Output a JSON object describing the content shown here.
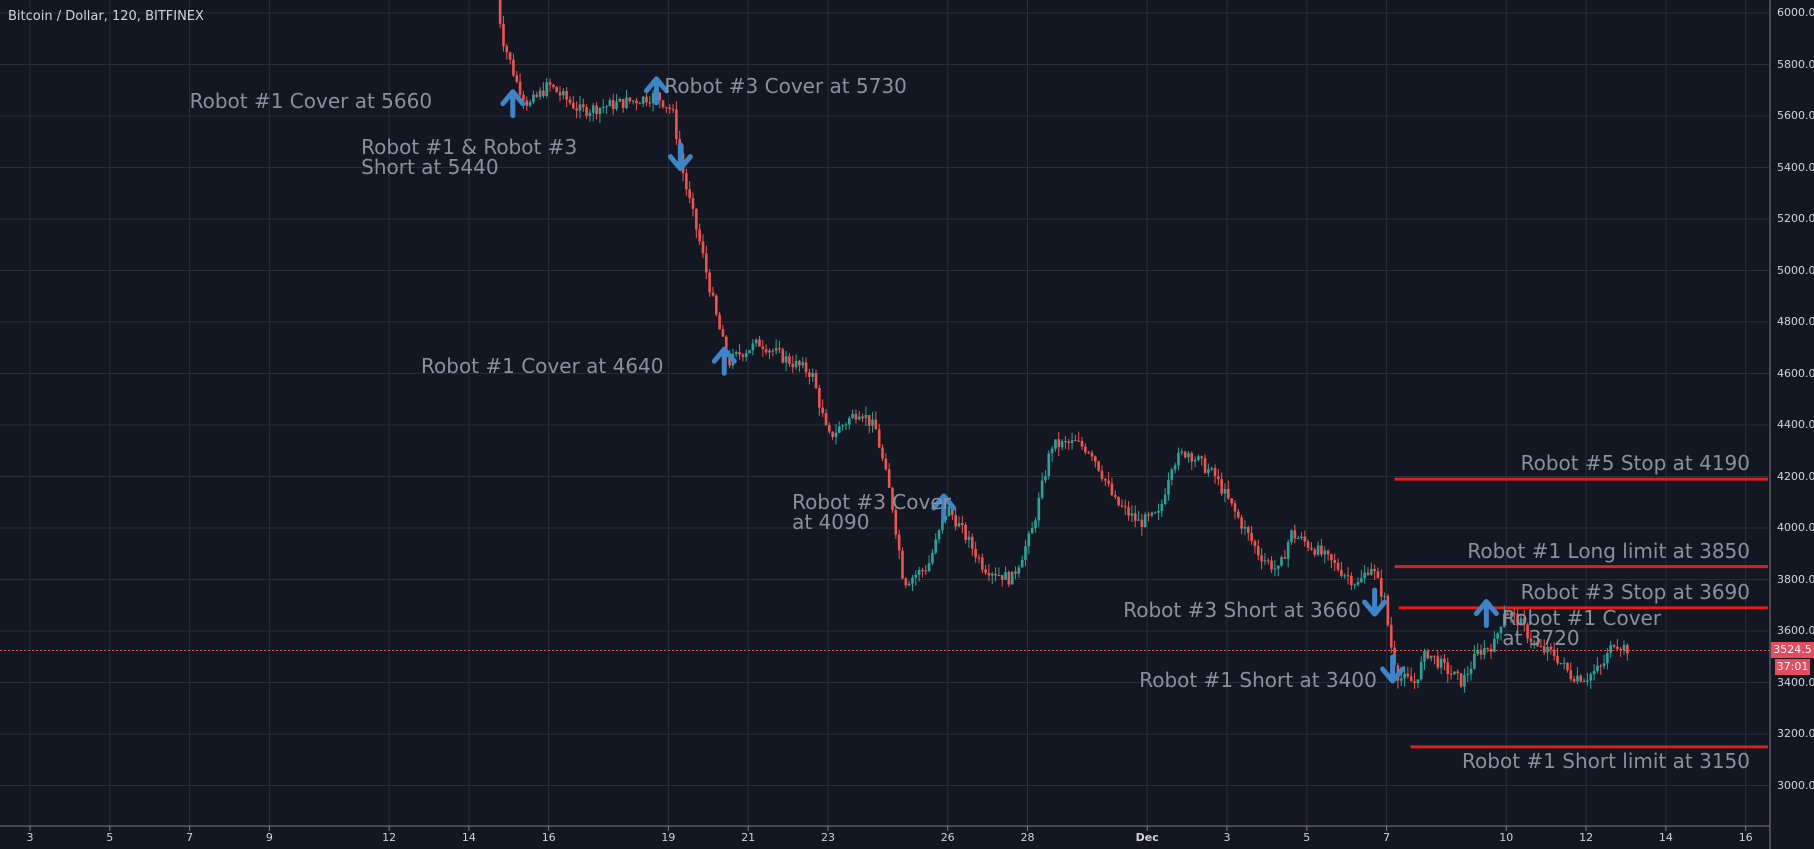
{
  "header": {
    "symbol": "Bitcoin / Dollar, 120, BITFINEX"
  },
  "colors": {
    "background": "#131722",
    "grid": "#2a2e39",
    "up": "#26a69a",
    "down": "#ef5350",
    "arrow": "#3d85c6",
    "level": "#e31d1d",
    "text": "#8a919e"
  },
  "chart_data": {
    "type": "candlestick",
    "title": "Bitcoin / Dollar, 120, BITFINEX",
    "y_ticks": [
      "6000.0",
      "5800.0",
      "5600.0",
      "5400.0",
      "5200.0",
      "5000.0",
      "4800.0",
      "4600.0",
      "4400.0",
      "4200.0",
      "4000.0",
      "3800.0",
      "3600.0",
      "3400.0",
      "3200.0",
      "3000.0"
    ],
    "ylim": [
      2870,
      6060
    ],
    "x_ticks": [
      "3",
      "5",
      "7",
      "9",
      "12",
      "14",
      "16",
      "19",
      "21",
      "23",
      "26",
      "28",
      "Dec",
      "3",
      "5",
      "7",
      "10",
      "12",
      "14",
      "16"
    ],
    "current_price": "3524.5",
    "countdown": "37:01",
    "price_path": [
      {
        "x": 14.7,
        "y": 6060
      },
      {
        "x": 14.85,
        "y": 5900
      },
      {
        "x": 15.2,
        "y": 5730
      },
      {
        "x": 15.5,
        "y": 5640
      },
      {
        "x": 16.0,
        "y": 5720
      },
      {
        "x": 16.8,
        "y": 5620
      },
      {
        "x": 17.8,
        "y": 5650
      },
      {
        "x": 18.7,
        "y": 5680
      },
      {
        "x": 19.1,
        "y": 5620
      },
      {
        "x": 19.4,
        "y": 5350
      },
      {
        "x": 19.8,
        "y": 5100
      },
      {
        "x": 20.2,
        "y": 4820
      },
      {
        "x": 20.5,
        "y": 4640
      },
      {
        "x": 20.8,
        "y": 4680
      },
      {
        "x": 21.3,
        "y": 4720
      },
      {
        "x": 21.9,
        "y": 4660
      },
      {
        "x": 22.6,
        "y": 4600
      },
      {
        "x": 23.0,
        "y": 4350
      },
      {
        "x": 23.8,
        "y": 4460
      },
      {
        "x": 24.2,
        "y": 4380
      },
      {
        "x": 24.6,
        "y": 4100
      },
      {
        "x": 24.9,
        "y": 3790
      },
      {
        "x": 25.5,
        "y": 3850
      },
      {
        "x": 26.0,
        "y": 4080
      },
      {
        "x": 26.4,
        "y": 3980
      },
      {
        "x": 26.9,
        "y": 3850
      },
      {
        "x": 27.6,
        "y": 3800
      },
      {
        "x": 28.1,
        "y": 3980
      },
      {
        "x": 28.6,
        "y": 4320
      },
      {
        "x": 29.2,
        "y": 4330
      },
      {
        "x": 29.6,
        "y": 4300
      },
      {
        "x": 30.2,
        "y": 4100
      },
      {
        "x": 30.8,
        "y": 4020
      },
      {
        "x": 31.3,
        "y": 4050
      },
      {
        "x": 31.6,
        "y": 4250
      },
      {
        "x": 32.0,
        "y": 4300
      },
      {
        "x": 32.7,
        "y": 4200
      },
      {
        "x": 33.2,
        "y": 4060
      },
      {
        "x": 33.8,
        "y": 3900
      },
      {
        "x": 34.3,
        "y": 3830
      },
      {
        "x": 34.6,
        "y": 3980
      },
      {
        "x": 35.2,
        "y": 3920
      },
      {
        "x": 35.9,
        "y": 3830
      },
      {
        "x": 36.3,
        "y": 3780
      },
      {
        "x": 36.6,
        "y": 3860
      },
      {
        "x": 36.95,
        "y": 3720
      },
      {
        "x": 37.1,
        "y": 3550
      },
      {
        "x": 37.3,
        "y": 3420
      },
      {
        "x": 37.7,
        "y": 3400
      },
      {
        "x": 38.0,
        "y": 3520
      },
      {
        "x": 38.5,
        "y": 3450
      },
      {
        "x": 38.9,
        "y": 3400
      },
      {
        "x": 39.3,
        "y": 3520
      },
      {
        "x": 39.7,
        "y": 3550
      },
      {
        "x": 39.95,
        "y": 3680
      },
      {
        "x": 40.3,
        "y": 3640
      },
      {
        "x": 40.8,
        "y": 3530
      },
      {
        "x": 41.2,
        "y": 3510
      },
      {
        "x": 41.6,
        "y": 3430
      },
      {
        "x": 42.0,
        "y": 3420
      },
      {
        "x": 42.4,
        "y": 3460
      },
      {
        "x": 42.7,
        "y": 3560
      },
      {
        "x": 43.1,
        "y": 3525
      }
    ],
    "levels": [
      {
        "price": 4190,
        "from": 37.2,
        "label": "Robot #5 Stop at 4190"
      },
      {
        "price": 3850,
        "from": 37.2,
        "label": "Robot #1 Long limit at 3850"
      },
      {
        "price": 3690,
        "from": 37.3,
        "label": "Robot #3 Stop at 3690"
      },
      {
        "price": 3150,
        "from": 37.6,
        "label": "Robot #1 Short limit at 3150"
      }
    ],
    "markers": [
      {
        "x": 15.1,
        "y": 5640,
        "dir": "up"
      },
      {
        "x": 18.7,
        "y": 5690,
        "dir": "up"
      },
      {
        "x": 19.3,
        "y": 5450,
        "dir": "down"
      },
      {
        "x": 20.4,
        "y": 4640,
        "dir": "up"
      },
      {
        "x": 25.9,
        "y": 4070,
        "dir": "up"
      },
      {
        "x": 36.7,
        "y": 3720,
        "dir": "down"
      },
      {
        "x": 37.15,
        "y": 3460,
        "dir": "down"
      },
      {
        "x": 39.5,
        "y": 3660,
        "dir": "up"
      }
    ],
    "annotations": [
      {
        "text": "Robot #1 Cover at 5660",
        "x": 7.0,
        "y": 5660
      },
      {
        "text": "Robot #3 Cover at 5730",
        "x": 18.9,
        "y": 5715
      },
      {
        "text": "Robot #1 & Robot #3\nShort at 5440",
        "x": 11.3,
        "y": 5480
      },
      {
        "text": "Robot #1 Cover at 4640",
        "x": 12.8,
        "y": 4630
      },
      {
        "text": "Robot #3 Cover\nat 4090",
        "x": 22.1,
        "y": 4100
      },
      {
        "text": "Robot #3 Short at 3660",
        "x": 30.4,
        "y": 3680
      },
      {
        "text": "Robot #1 Cover\nat 3720",
        "x": 39.9,
        "y": 3650
      },
      {
        "text": "Robot #1 Short at 3400",
        "x": 30.8,
        "y": 3410
      }
    ]
  }
}
